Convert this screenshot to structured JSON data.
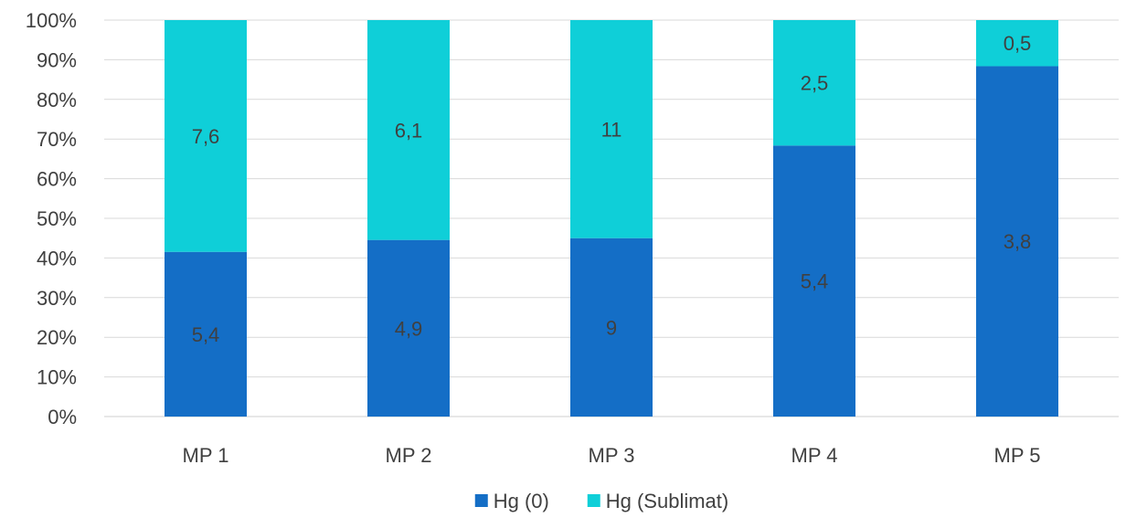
{
  "chart_data": {
    "type": "bar",
    "stacked": "percent",
    "categories": [
      "MP 1",
      "MP 2",
      "MP 3",
      "MP 4",
      "MP 5"
    ],
    "series": [
      {
        "name": "Hg (0)",
        "values": [
          5.4,
          4.9,
          9,
          5.4,
          3.8
        ],
        "labels": [
          "5,4",
          "4,9",
          "9",
          "5,4",
          "3,8"
        ],
        "color": "#146ec6"
      },
      {
        "name": "Hg (Sublimat)",
        "values": [
          7.6,
          6.1,
          11,
          2.5,
          0.5
        ],
        "labels": [
          "7,6",
          "6,1",
          "11",
          "2,5",
          "0,5"
        ],
        "color": "#0fcfd8"
      }
    ],
    "ylim": [
      0,
      100
    ],
    "y_ticks": [
      "0%",
      "10%",
      "20%",
      "30%",
      "40%",
      "50%",
      "60%",
      "70%",
      "80%",
      "90%",
      "100%"
    ],
    "grid": true,
    "legend": "bottom",
    "title": "",
    "xlabel": "",
    "ylabel": ""
  }
}
